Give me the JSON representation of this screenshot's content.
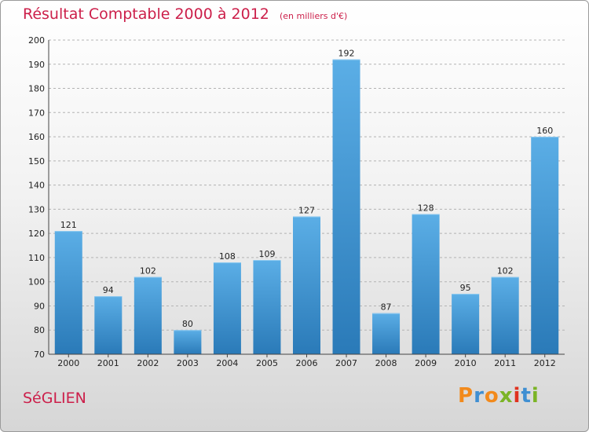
{
  "chart_data": {
    "type": "bar",
    "title": "Résultat Comptable 2000 à 2012",
    "subtitle": "(en milliers d'€)",
    "categories": [
      "2000",
      "2001",
      "2002",
      "2003",
      "2004",
      "2005",
      "2006",
      "2007",
      "2008",
      "2009",
      "2010",
      "2011",
      "2012"
    ],
    "values": [
      121,
      94,
      102,
      80,
      108,
      109,
      127,
      192,
      87,
      128,
      95,
      102,
      160
    ],
    "ylim": [
      70,
      200
    ],
    "yticks": [
      70,
      80,
      90,
      100,
      110,
      120,
      130,
      140,
      150,
      160,
      170,
      180,
      190,
      200
    ],
    "grid": true,
    "xlabel": "",
    "ylabel": ""
  },
  "footer": {
    "commune": "SéGLIEN",
    "brand": "Proxiti"
  },
  "colors": {
    "bar_light": "#5baee6",
    "bar_dark": "#2a7ab8",
    "title": "#cc1f4a",
    "grid": "#b3b3b3",
    "brand": [
      "#f28a1c",
      "#3f8fd2",
      "#f28a1c",
      "#7bb426",
      "#e0321f",
      "#3f8fd2",
      "#7bb426"
    ]
  }
}
